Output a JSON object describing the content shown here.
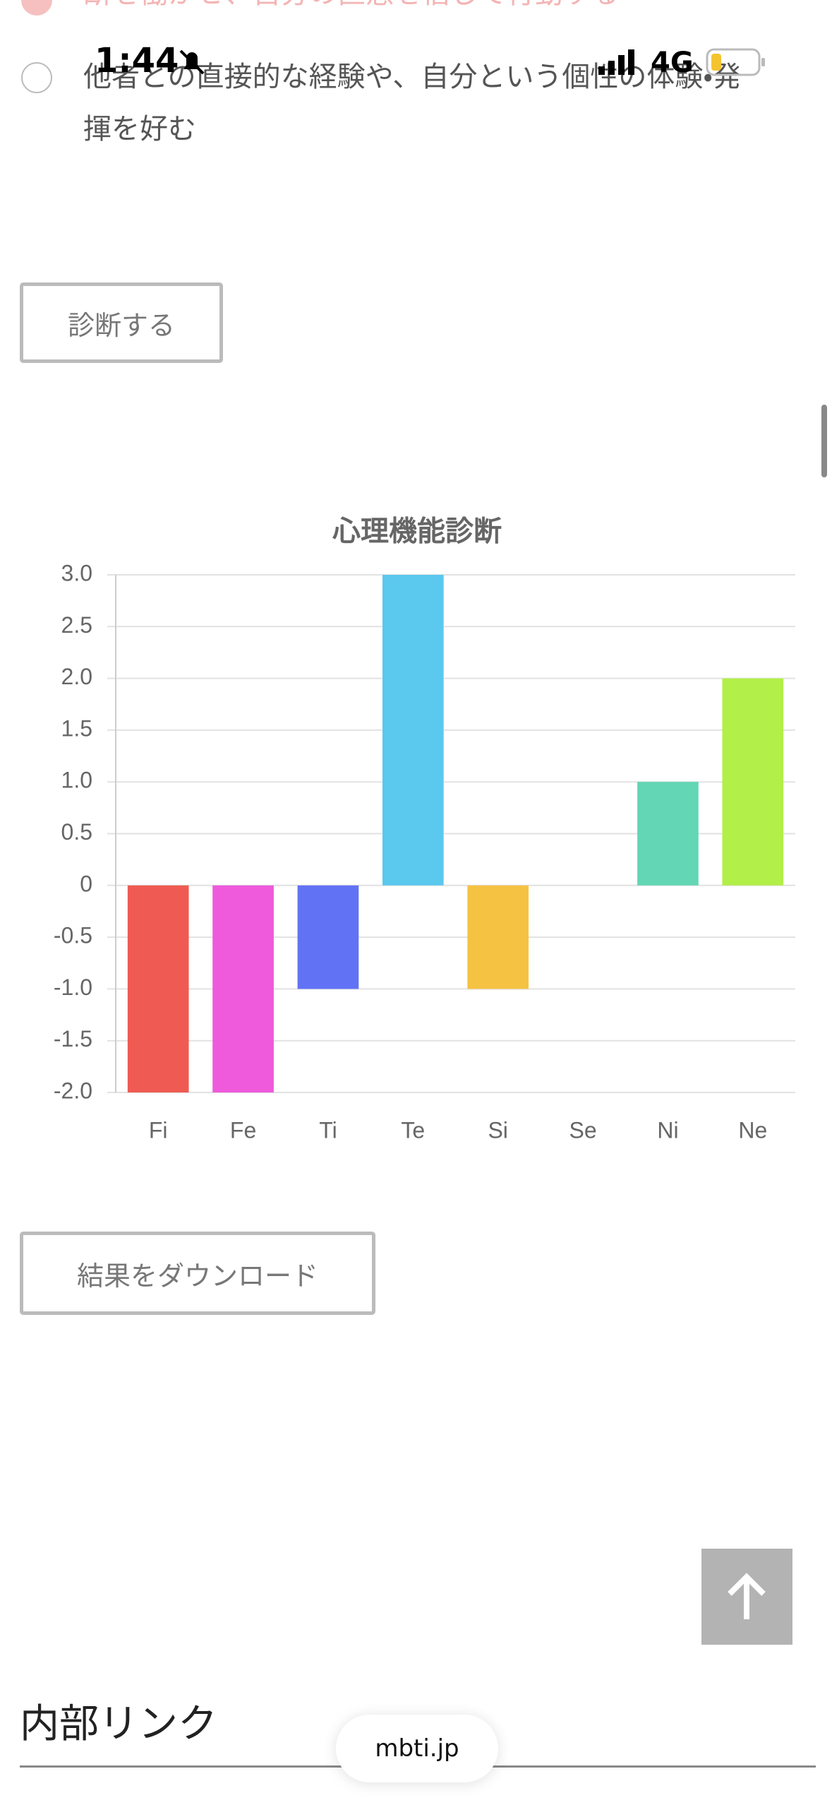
{
  "status_bar": {
    "time": "1:44",
    "network": "4G"
  },
  "options": [
    {
      "text": "断を働かせ、自分の直感を信じて行動する"
    },
    {
      "text": "他者との直接的な経験や、自分という個性の体験・発揮を好む"
    }
  ],
  "diagnose_button": "診断する",
  "chart_data": {
    "type": "bar",
    "title": "心理機能診断",
    "categories": [
      "Fi",
      "Fe",
      "Ti",
      "Te",
      "Si",
      "Se",
      "Ni",
      "Ne"
    ],
    "values": [
      -2,
      -2,
      -1,
      3,
      -1,
      0,
      1,
      2
    ],
    "colors": [
      "#ef5b52",
      "#ee5adb",
      "#6272f5",
      "#5bc8ee",
      "#f5c242",
      "#f08a3c",
      "#62d6b5",
      "#b2ef48"
    ],
    "ylim": [
      -2,
      3
    ],
    "yticks": [
      {
        "value": -2,
        "label": "-2.0"
      },
      -1.5,
      {
        "value": -1,
        "label": "-1.0"
      },
      -0.5,
      0,
      0.5,
      {
        "value": 1,
        "label": "1.0"
      },
      1.5,
      {
        "value": 2,
        "label": "2.0"
      },
      2.5,
      {
        "value": 3,
        "label": "3.0"
      }
    ],
    "grid": true
  },
  "download_button": "結果をダウンロード",
  "section_heading": "内部リンク",
  "url": "mbti.jp"
}
